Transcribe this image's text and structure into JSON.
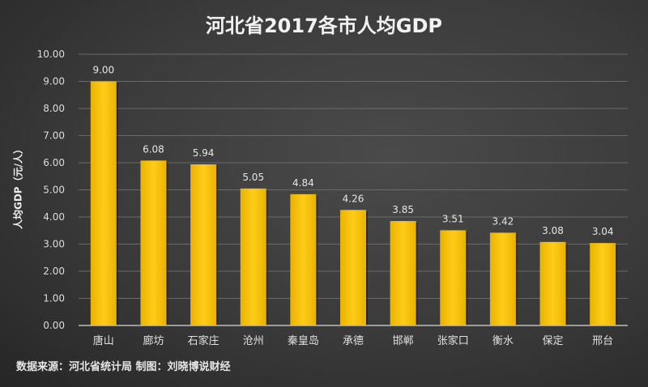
{
  "chart_data": {
    "type": "bar",
    "title": "河北省2017各市人均GDP",
    "xlabel": "",
    "ylabel": "人均GDP（元/人）",
    "ylim": [
      0,
      10
    ],
    "yticks": [
      "0.00",
      "1.00",
      "2.00",
      "3.00",
      "4.00",
      "5.00",
      "6.00",
      "7.00",
      "8.00",
      "9.00",
      "10.00"
    ],
    "categories": [
      "唐山",
      "廊坊",
      "石家庄",
      "沧州",
      "秦皇岛",
      "承德",
      "邯郸",
      "张家口",
      "衡水",
      "保定",
      "邢台"
    ],
    "values": [
      9.0,
      6.08,
      5.94,
      5.05,
      4.84,
      4.26,
      3.85,
      3.51,
      3.42,
      3.08,
      3.04
    ],
    "labels": [
      "9.00",
      "6.08",
      "5.94",
      "5.05",
      "4.84",
      "4.26",
      "3.85",
      "3.51",
      "3.42",
      "3.08",
      "3.04"
    ],
    "bar_color": "#f5c000",
    "grid": true,
    "source": "数据来源：河北省统计局 制图：刘晓博说财经"
  }
}
